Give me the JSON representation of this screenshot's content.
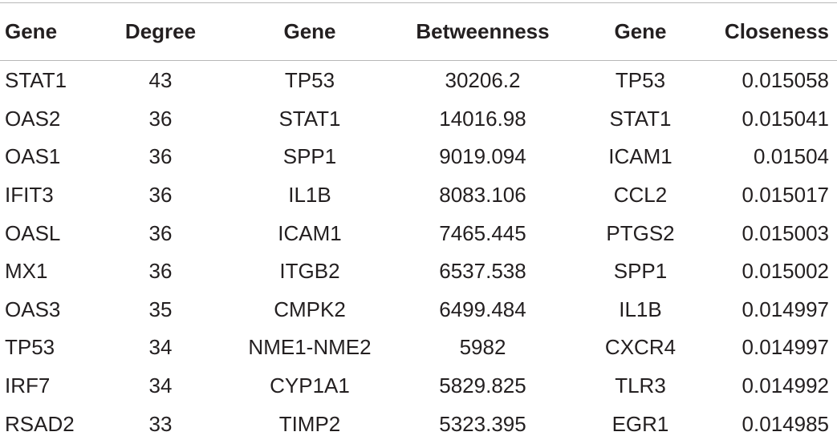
{
  "table": {
    "headers": [
      "Gene",
      "Degree",
      "Gene",
      "Betweenness",
      "Gene",
      "Closeness"
    ],
    "rows": [
      [
        "STAT1",
        "43",
        "TP53",
        "30206.2",
        "TP53",
        "0.015058"
      ],
      [
        "OAS2",
        "36",
        "STAT1",
        "14016.98",
        "STAT1",
        "0.015041"
      ],
      [
        "OAS1",
        "36",
        "SPP1",
        "9019.094",
        "ICAM1",
        "0.01504"
      ],
      [
        "IFIT3",
        "36",
        "IL1B",
        "8083.106",
        "CCL2",
        "0.015017"
      ],
      [
        "OASL",
        "36",
        "ICAM1",
        "7465.445",
        "PTGS2",
        "0.015003"
      ],
      [
        "MX1",
        "36",
        "ITGB2",
        "6537.538",
        "SPP1",
        "0.015002"
      ],
      [
        "OAS3",
        "35",
        "CMPK2",
        "6499.484",
        "IL1B",
        "0.014997"
      ],
      [
        "TP53",
        "34",
        "NME1-NME2",
        "5982",
        "CXCR4",
        "0.014997"
      ],
      [
        "IRF7",
        "34",
        "CYP1A1",
        "5829.825",
        "TLR3",
        "0.014992"
      ],
      [
        "RSAD2",
        "33",
        "TIMP2",
        "5323.395",
        "EGR1",
        "0.014985"
      ]
    ]
  }
}
